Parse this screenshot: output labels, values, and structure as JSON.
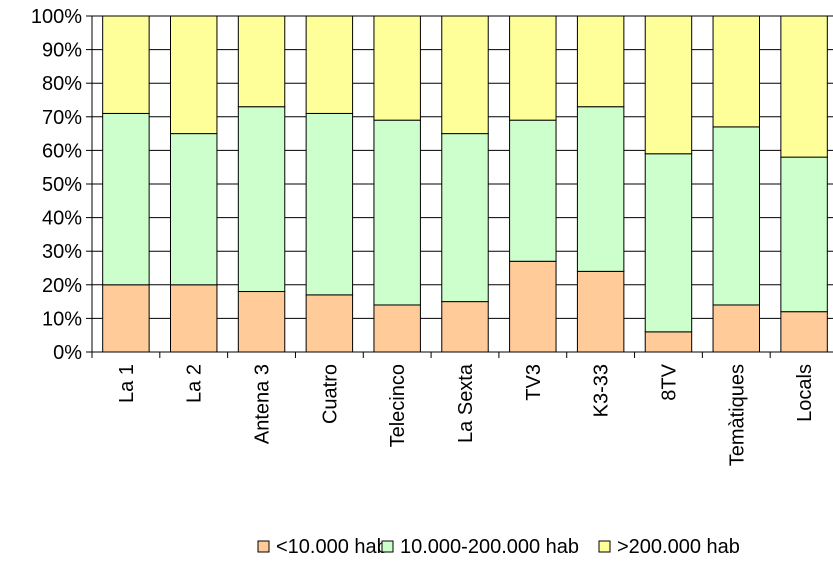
{
  "chart_data": {
    "type": "bar",
    "stacked": true,
    "percent": true,
    "categories": [
      "La 1",
      "La 2",
      "Antena 3",
      "Cuatro",
      "Telecinco",
      "La Sexta",
      "TV3",
      "K3-33",
      "8TV",
      "Temàtiques",
      "Locals"
    ],
    "series": [
      {
        "name": "<10.000 hab",
        "color": "#FFCC99",
        "values": [
          20,
          20,
          18,
          17,
          14,
          15,
          27,
          24,
          6,
          14,
          12
        ]
      },
      {
        "name": "10.000-200.000 hab",
        "color": "#CCFFCC",
        "values": [
          51,
          45,
          55,
          54,
          55,
          50,
          42,
          49,
          53,
          53,
          46
        ]
      },
      {
        "name": ">200.000 hab",
        "color": "#FFFF99",
        "values": [
          29,
          35,
          27,
          29,
          31,
          35,
          31,
          27,
          41,
          33,
          42
        ]
      }
    ],
    "yticks": [
      "0%",
      "10%",
      "20%",
      "30%",
      "40%",
      "50%",
      "60%",
      "70%",
      "80%",
      "90%",
      "100%"
    ],
    "ylim": [
      0,
      100
    ],
    "grid": true,
    "legend": "bottom",
    "title": "",
    "xlabel": "",
    "ylabel": ""
  }
}
